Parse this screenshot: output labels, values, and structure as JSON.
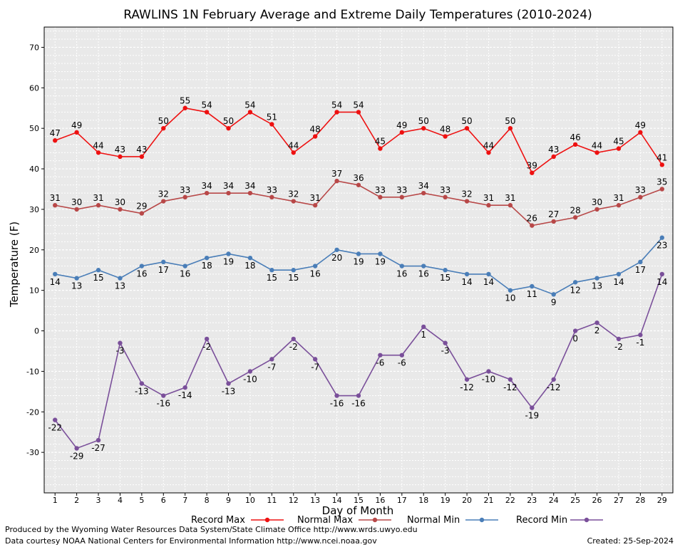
{
  "chart_data": {
    "type": "line",
    "title": "RAWLINS 1N February Average and Extreme Daily Temperatures (2010-2024)",
    "xlabel": "Day of Month",
    "ylabel": "Temperature (F)",
    "ylim": [
      -40,
      75
    ],
    "y_ticks": [
      -30,
      -20,
      -10,
      0,
      10,
      20,
      30,
      40,
      50,
      60,
      70
    ],
    "grid": true,
    "legend_position": "bottom",
    "categories": [
      1,
      2,
      3,
      4,
      5,
      6,
      7,
      8,
      9,
      10,
      11,
      12,
      13,
      14,
      15,
      16,
      17,
      18,
      19,
      20,
      21,
      22,
      23,
      24,
      25,
      26,
      27,
      28,
      29
    ],
    "series": [
      {
        "name": "Record Max",
        "color": "#ee1111",
        "label_position": "above",
        "values": [
          47,
          49,
          44,
          43,
          43,
          50,
          55,
          54,
          50,
          54,
          51,
          44,
          48,
          54,
          54,
          45,
          49,
          50,
          48,
          50,
          44,
          50,
          39,
          43,
          46,
          44,
          45,
          49,
          41
        ]
      },
      {
        "name": "Normal Max",
        "color": "#b84848",
        "label_position": "above",
        "values": [
          31,
          30,
          31,
          30,
          29,
          32,
          33,
          34,
          34,
          34,
          33,
          32,
          31,
          37,
          36,
          33,
          33,
          34,
          33,
          32,
          31,
          31,
          26,
          27,
          28,
          30,
          31,
          33,
          35
        ]
      },
      {
        "name": "Normal Min",
        "color": "#4a7eb8",
        "label_position": "below",
        "values": [
          14,
          13,
          15,
          13,
          16,
          17,
          16,
          18,
          19,
          18,
          15,
          15,
          16,
          20,
          19,
          19,
          16,
          16,
          15,
          14,
          14,
          10,
          11,
          9,
          12,
          13,
          14,
          17,
          23
        ]
      },
      {
        "name": "Record Min",
        "color": "#7a4f9a",
        "label_position": "below",
        "values": [
          -22,
          -29,
          -27,
          -3,
          -13,
          -16,
          -14,
          -2,
          -13,
          -10,
          -7,
          -2,
          -7,
          -16,
          -16,
          -6,
          -6,
          1,
          -3,
          -12,
          -10,
          -12,
          -19,
          -12,
          0,
          2,
          -2,
          -1,
          14
        ]
      }
    ]
  },
  "footer": {
    "line1": "Produced by the Wyoming Water Resources Data System/State Climate Office http://www.wrds.uwyo.edu",
    "line2": "Data courtesy NOAA National Centers for Environmental Information http://www.ncei.noaa.gov",
    "created": "Created: 25-Sep-2024"
  }
}
